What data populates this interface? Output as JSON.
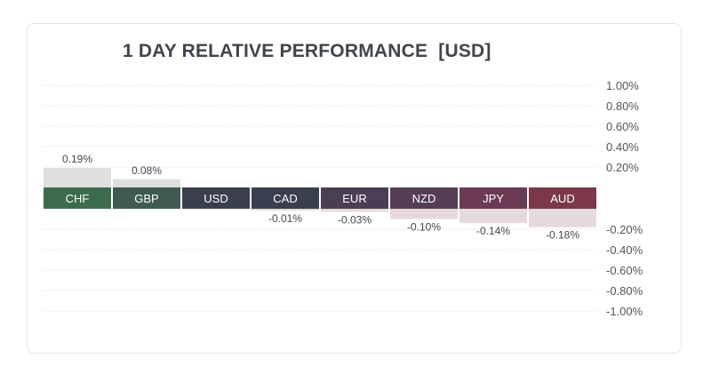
{
  "chart_data": {
    "type": "bar",
    "title": "1 DAY RELATIVE PERFORMANCE  [USD]",
    "categories": [
      "CHF",
      "GBP",
      "USD",
      "CAD",
      "EUR",
      "NZD",
      "JPY",
      "AUD"
    ],
    "values": [
      0.19,
      0.08,
      0.0,
      -0.01,
      -0.03,
      -0.1,
      -0.14,
      -0.18
    ],
    "value_labels": [
      "0.19%",
      "0.08%",
      "",
      "-0.01%",
      "-0.03%",
      "-0.10%",
      "-0.14%",
      "-0.18%"
    ],
    "category_colors": [
      "#3d6b4d",
      "#3f5a53",
      "#3a3f4d",
      "#3a3f50",
      "#4a3e55",
      "#553d55",
      "#6a3b52",
      "#7a3848"
    ],
    "positive_bar_color": "#dde0df",
    "negative_bar_color": "#e6d9dd",
    "ylim": [
      -1.0,
      1.0
    ],
    "yticks_upper": [
      "1.00%",
      "0.80%",
      "0.60%",
      "0.40%",
      "0.20%"
    ],
    "yticks_lower": [
      "-0.20%",
      "-0.40%",
      "-0.60%",
      "-0.80%",
      "-1.00%"
    ],
    "grid": true,
    "axis_position": "right"
  }
}
